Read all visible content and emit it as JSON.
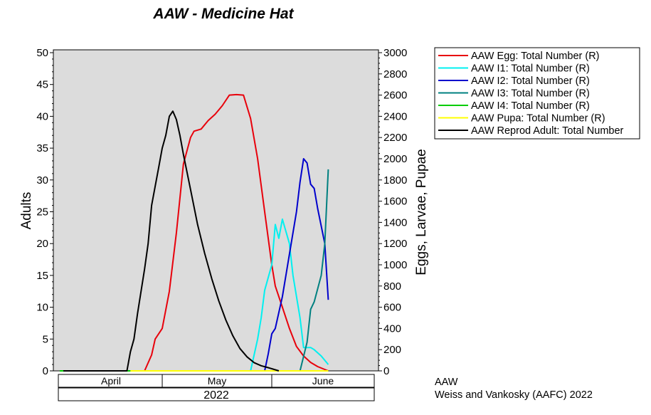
{
  "chart_data": {
    "type": "line",
    "title": "AAW - Medicine Hat",
    "y_left_label": "Adults",
    "y_right_label": "Eggs, Larvae, Pupae",
    "y_left_lim": [
      0,
      50
    ],
    "y_left_ticks": [
      "0",
      "5",
      "10",
      "15",
      "20",
      "25",
      "30",
      "35",
      "40",
      "45",
      "50"
    ],
    "y_right_lim": [
      0,
      3000
    ],
    "y_right_ticks": [
      "0",
      "200",
      "400",
      "600",
      "800",
      "1000",
      "1200",
      "1400",
      "1600",
      "1800",
      "2000",
      "2200",
      "2400",
      "2600",
      "2800",
      "3000"
    ],
    "x_unit": "day of year",
    "x_lim": [
      92,
      181
    ],
    "months": [
      {
        "label": "April",
        "start": 92,
        "end": 121
      },
      {
        "label": "May",
        "start": 121,
        "end": 152
      },
      {
        "label": "June",
        "start": 152,
        "end": 181
      }
    ],
    "year_label": "2022",
    "grid": false,
    "legend_position": "right",
    "series": [
      {
        "name": "AAW Egg: Total Number (R)",
        "axis": "right",
        "color": "#e8000b",
        "points": [
          [
            116,
            0
          ],
          [
            118,
            150
          ],
          [
            119,
            300
          ],
          [
            121,
            400
          ],
          [
            123,
            750
          ],
          [
            125,
            1300
          ],
          [
            127,
            1950
          ],
          [
            129,
            2200
          ],
          [
            130,
            2260
          ],
          [
            132,
            2280
          ],
          [
            134,
            2360
          ],
          [
            136,
            2420
          ],
          [
            138,
            2500
          ],
          [
            140,
            2600
          ],
          [
            142,
            2605
          ],
          [
            144,
            2600
          ],
          [
            146,
            2380
          ],
          [
            148,
            2000
          ],
          [
            150,
            1500
          ],
          [
            152,
            1000
          ],
          [
            153,
            800
          ],
          [
            155,
            600
          ],
          [
            157,
            400
          ],
          [
            159,
            230
          ],
          [
            161,
            140
          ],
          [
            163,
            80
          ],
          [
            165,
            40
          ],
          [
            168,
            0
          ]
        ]
      },
      {
        "name": "AAW I1: Total Number (R)",
        "axis": "right",
        "color": "#00f0f0",
        "points": [
          [
            146,
            0
          ],
          [
            148,
            300
          ],
          [
            149,
            500
          ],
          [
            150,
            760
          ],
          [
            152,
            1000
          ],
          [
            153,
            1380
          ],
          [
            154,
            1250
          ],
          [
            155,
            1430
          ],
          [
            157,
            1200
          ],
          [
            158,
            900
          ],
          [
            160,
            500
          ],
          [
            161,
            220
          ],
          [
            163,
            220
          ],
          [
            164,
            200
          ],
          [
            166,
            140
          ],
          [
            168,
            60
          ]
        ]
      },
      {
        "name": "AAW I2: Total Number (R)",
        "axis": "right",
        "color": "#0000cc",
        "points": [
          [
            150,
            0
          ],
          [
            151,
            160
          ],
          [
            152,
            350
          ],
          [
            153,
            400
          ],
          [
            155,
            700
          ],
          [
            157,
            1100
          ],
          [
            159,
            1500
          ],
          [
            160,
            1780
          ],
          [
            161,
            2000
          ],
          [
            162,
            1960
          ],
          [
            163,
            1760
          ],
          [
            164,
            1720
          ],
          [
            165,
            1530
          ],
          [
            167,
            1200
          ],
          [
            168,
            670
          ]
        ]
      },
      {
        "name": "AAW I3: Total Number (R)",
        "axis": "right",
        "color": "#008080",
        "points": [
          [
            160,
            0
          ],
          [
            162,
            270
          ],
          [
            163,
            580
          ],
          [
            164,
            650
          ],
          [
            166,
            900
          ],
          [
            167,
            1200
          ],
          [
            168,
            1900
          ]
        ]
      },
      {
        "name": "AAW I4: Total Number (R)",
        "axis": "right",
        "color": "#00cc00",
        "points": [
          [
            92,
            0
          ],
          [
            168,
            0
          ]
        ]
      },
      {
        "name": "AAW Pupa: Total Number (R)",
        "axis": "right",
        "color": "#ffff00",
        "points": [
          [
            112,
            0
          ],
          [
            168,
            0
          ]
        ]
      },
      {
        "name": "AAW Reprod Adult: Total Number",
        "axis": "left",
        "color": "#000000",
        "points": [
          [
            93,
            0
          ],
          [
            111,
            0
          ],
          [
            112,
            3
          ],
          [
            113,
            5
          ],
          [
            114,
            9
          ],
          [
            116,
            16
          ],
          [
            117,
            20
          ],
          [
            118,
            26
          ],
          [
            119,
            29
          ],
          [
            120,
            32
          ],
          [
            121,
            35
          ],
          [
            122,
            37
          ],
          [
            123,
            40
          ],
          [
            124,
            40.8
          ],
          [
            125,
            39.5
          ],
          [
            126,
            37
          ],
          [
            127,
            34
          ],
          [
            129,
            28.5
          ],
          [
            131,
            23
          ],
          [
            133,
            18.5
          ],
          [
            135,
            14.5
          ],
          [
            137,
            11
          ],
          [
            139,
            8
          ],
          [
            141,
            5.5
          ],
          [
            143,
            3.5
          ],
          [
            145,
            2.2
          ],
          [
            147,
            1.3
          ],
          [
            149,
            0.8
          ],
          [
            151,
            0.5
          ],
          [
            154,
            0
          ]
        ]
      }
    ]
  },
  "credits": {
    "line1": "AAW",
    "line2": "Weiss and Vankosky (AAFC) 2022"
  }
}
